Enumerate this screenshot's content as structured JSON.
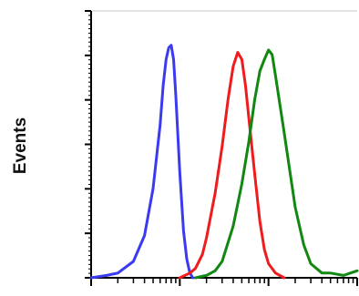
{
  "chart_data": {
    "type": "line",
    "title": "",
    "xlabel": "",
    "ylabel": "Events",
    "xscale": "log",
    "xlim": [
      1,
      1000
    ],
    "ylim": [
      0,
      1
    ],
    "grid": false,
    "legend": "none",
    "series": [
      {
        "color": "#3a3af0",
        "x": [
          1,
          1.5,
          2,
          3,
          4,
          5,
          6,
          6.5,
          7,
          7.5,
          8,
          8.5,
          9,
          10,
          11,
          12,
          13,
          14
        ],
        "y": [
          0.0,
          0.01,
          0.02,
          0.07,
          0.18,
          0.38,
          0.65,
          0.82,
          0.93,
          0.98,
          0.99,
          0.93,
          0.78,
          0.45,
          0.2,
          0.08,
          0.02,
          0.0
        ]
      },
      {
        "color": "#ee1c1c",
        "x": [
          10,
          13,
          15,
          18,
          20,
          25,
          30,
          35,
          40,
          45,
          50,
          55,
          60,
          70,
          80,
          90,
          100,
          120,
          150
        ],
        "y": [
          0.0,
          0.02,
          0.04,
          0.1,
          0.17,
          0.36,
          0.56,
          0.76,
          0.9,
          0.96,
          0.93,
          0.82,
          0.68,
          0.44,
          0.24,
          0.12,
          0.06,
          0.02,
          0.0
        ]
      },
      {
        "color": "#118811",
        "x": [
          15,
          20,
          25,
          30,
          40,
          50,
          60,
          70,
          80,
          90,
          100,
          110,
          120,
          150,
          200,
          250,
          300,
          400,
          500,
          700,
          1000
        ],
        "y": [
          0.0,
          0.01,
          0.03,
          0.07,
          0.22,
          0.4,
          0.58,
          0.76,
          0.88,
          0.93,
          0.97,
          0.95,
          0.86,
          0.62,
          0.3,
          0.14,
          0.06,
          0.02,
          0.02,
          0.01,
          0.03
        ]
      }
    ]
  }
}
